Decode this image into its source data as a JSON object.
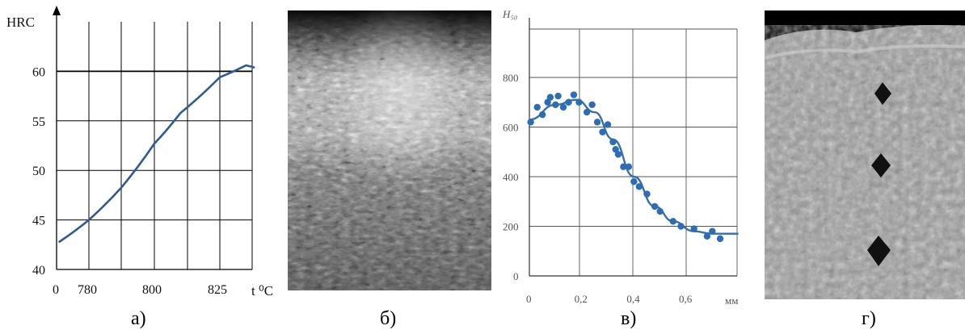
{
  "panels": [
    {
      "label": "а)"
    },
    {
      "label": "б)"
    },
    {
      "label": "в)"
    },
    {
      "label": "г)"
    }
  ],
  "chart_data": [
    {
      "type": "line",
      "panel": "а)",
      "ylabel": "HRC",
      "xlabel": "t ⁰C",
      "x_tick_labels": [
        "0",
        "780",
        "800",
        "825"
      ],
      "y_tick_labels": [
        "40",
        "45",
        "50",
        "55",
        "60"
      ],
      "ylim": [
        40,
        65
      ],
      "grid": true,
      "series": [
        {
          "color": "#2e5b91",
          "points": [
            [
              771,
              42.8
            ],
            [
              780,
              45.0
            ],
            [
              790,
              48.3
            ],
            [
              800,
              52.7
            ],
            [
              810,
              55.8
            ],
            [
              825,
              59.4
            ],
            [
              835,
              60.6
            ],
            [
              838,
              60.4
            ]
          ]
        }
      ]
    },
    {
      "type": "scatter",
      "panel": "в)",
      "ylabel": "H₅₀",
      "xlabel": "мм",
      "x_tick_labels": [
        "0",
        "0,2",
        "0,4",
        "0,6"
      ],
      "y_tick_labels": [
        "0",
        "200",
        "400",
        "600",
        "800"
      ],
      "xlim": [
        0,
        0.8
      ],
      "ylim": [
        0,
        1000
      ],
      "grid": true,
      "points_color": "#2e6db3",
      "points": [
        [
          0.005,
          620
        ],
        [
          0.03,
          680
        ],
        [
          0.05,
          650
        ],
        [
          0.07,
          700
        ],
        [
          0.08,
          720
        ],
        [
          0.1,
          690
        ],
        [
          0.11,
          725
        ],
        [
          0.13,
          680
        ],
        [
          0.15,
          700
        ],
        [
          0.17,
          730
        ],
        [
          0.19,
          700
        ],
        [
          0.22,
          660
        ],
        [
          0.24,
          690
        ],
        [
          0.26,
          620
        ],
        [
          0.28,
          580
        ],
        [
          0.3,
          610
        ],
        [
          0.32,
          540
        ],
        [
          0.33,
          510
        ],
        [
          0.34,
          490
        ],
        [
          0.36,
          440
        ],
        [
          0.38,
          440
        ],
        [
          0.4,
          380
        ],
        [
          0.42,
          360
        ],
        [
          0.45,
          330
        ],
        [
          0.48,
          280
        ],
        [
          0.5,
          260
        ],
        [
          0.55,
          220
        ],
        [
          0.58,
          200
        ],
        [
          0.63,
          190
        ],
        [
          0.68,
          160
        ],
        [
          0.7,
          180
        ],
        [
          0.73,
          150
        ]
      ],
      "fit": [
        [
          0.0,
          630
        ],
        [
          0.1,
          690
        ],
        [
          0.18,
          710
        ],
        [
          0.25,
          660
        ],
        [
          0.32,
          550
        ],
        [
          0.4,
          400
        ],
        [
          0.48,
          280
        ],
        [
          0.55,
          220
        ],
        [
          0.63,
          180
        ],
        [
          0.7,
          170
        ],
        [
          0.8,
          170
        ]
      ]
    }
  ]
}
